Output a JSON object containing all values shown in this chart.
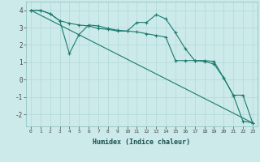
{
  "title": "",
  "xlabel": "Humidex (Indice chaleur)",
  "ylabel": "",
  "bg_color": "#cceaea",
  "line_color": "#1a7a6e",
  "grid_color": "#b0d8d8",
  "xlim": [
    -0.5,
    23.5
  ],
  "ylim": [
    -2.7,
    4.5
  ],
  "yticks": [
    -2,
    -1,
    0,
    1,
    2,
    3,
    4
  ],
  "xticks": [
    0,
    1,
    2,
    3,
    4,
    5,
    6,
    7,
    8,
    9,
    10,
    11,
    12,
    13,
    14,
    15,
    16,
    17,
    18,
    19,
    20,
    21,
    22,
    23
  ],
  "line1_x": [
    0,
    1,
    2,
    3,
    4,
    5,
    6,
    7,
    8,
    9,
    10,
    11,
    12,
    13,
    14,
    15,
    16,
    17,
    18,
    19,
    20,
    21,
    22,
    23
  ],
  "line1_y": [
    4.0,
    4.0,
    3.8,
    3.4,
    1.5,
    2.6,
    3.15,
    3.1,
    2.95,
    2.85,
    2.8,
    2.75,
    2.65,
    2.55,
    2.45,
    1.1,
    1.1,
    1.1,
    1.05,
    0.9,
    0.1,
    -0.9,
    -2.4,
    -2.5
  ],
  "line2_x": [
    0,
    1,
    2,
    3,
    4,
    5,
    6,
    7,
    8,
    9,
    10,
    11,
    12,
    13,
    14,
    15,
    16,
    17,
    18,
    19,
    20,
    21,
    22,
    23
  ],
  "line2_y": [
    4.0,
    4.0,
    3.8,
    3.4,
    3.25,
    3.15,
    3.1,
    2.95,
    2.9,
    2.8,
    2.8,
    3.3,
    3.3,
    3.75,
    3.5,
    2.7,
    1.8,
    1.1,
    1.1,
    1.05,
    0.1,
    -0.9,
    -0.9,
    -2.5
  ],
  "line3_x": [
    0,
    23
  ],
  "line3_y": [
    4.0,
    -2.5
  ]
}
